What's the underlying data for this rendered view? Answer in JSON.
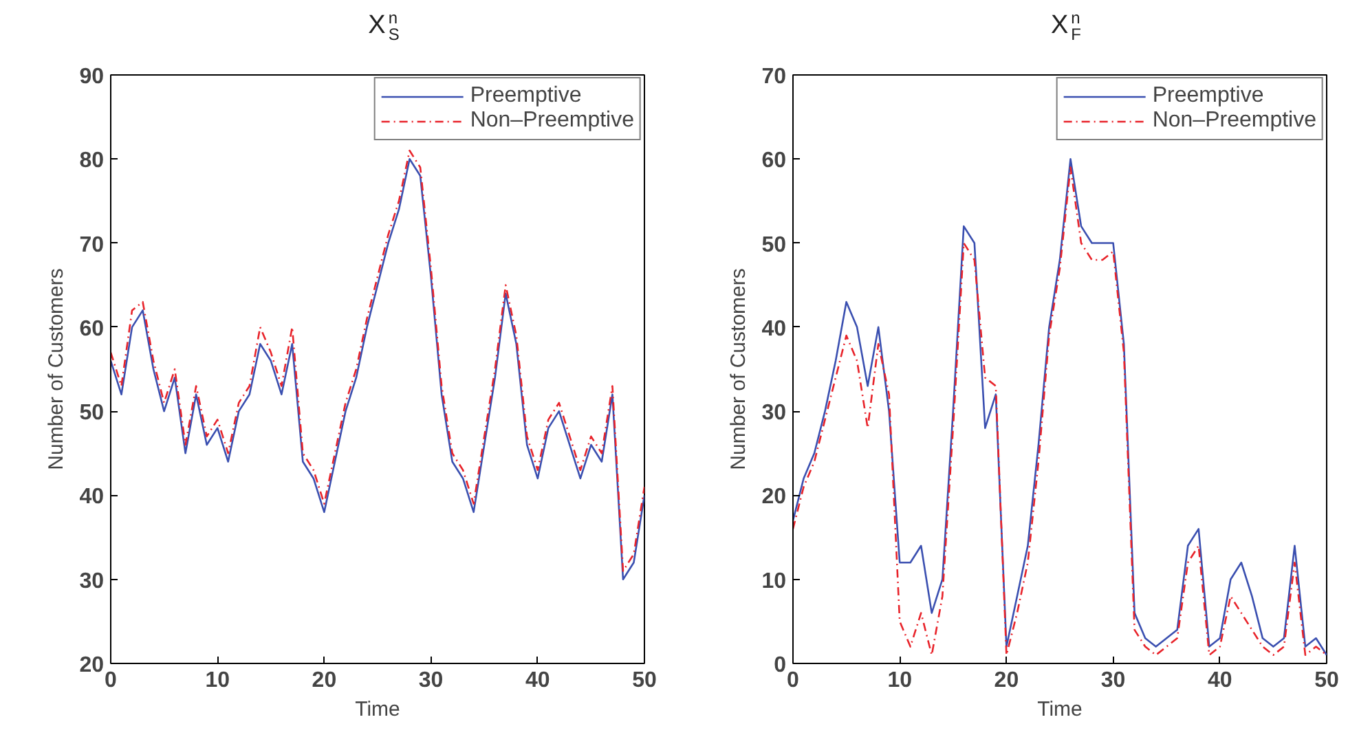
{
  "chart_data": [
    {
      "type": "line",
      "title": "X$^{n}$$_{S}$",
      "xlabel": "Time",
      "ylabel": "Number of Customers",
      "xlim": [
        0,
        50
      ],
      "ylim": [
        20,
        90
      ],
      "xticks": [
        0,
        10,
        20,
        30,
        40,
        50
      ],
      "yticks": [
        20,
        30,
        40,
        50,
        60,
        70,
        80,
        90
      ],
      "grid": false,
      "legend": "top right",
      "x": [
        0,
        1,
        2,
        3,
        4,
        5,
        6,
        7,
        8,
        9,
        10,
        11,
        12,
        13,
        14,
        15,
        16,
        17,
        18,
        19,
        20,
        21,
        22,
        23,
        24,
        25,
        26,
        27,
        28,
        29,
        30,
        31,
        32,
        33,
        34,
        35,
        36,
        37,
        38,
        39,
        40,
        41,
        42,
        43,
        44,
        45,
        46,
        47,
        48,
        49,
        50
      ],
      "series": [
        {
          "name": "Preemptive",
          "color": "#3a4fb0",
          "line_style": "solid",
          "values": [
            56,
            52,
            60,
            62,
            55,
            50,
            54,
            45,
            52,
            46,
            48,
            44,
            50,
            52,
            58,
            56,
            52,
            58,
            44,
            42,
            38,
            44,
            50,
            54,
            60,
            65,
            70,
            74,
            80,
            78,
            66,
            52,
            44,
            42,
            38,
            46,
            54,
            64,
            58,
            46,
            42,
            48,
            50,
            46,
            42,
            46,
            44,
            52,
            30,
            32,
            40
          ]
        },
        {
          "name": "Non–Preemptive",
          "color": "#e8232a",
          "line_style": "dashdot",
          "values": [
            57,
            53,
            62,
            63,
            56,
            51,
            55,
            46,
            53,
            47,
            49,
            45,
            51,
            53,
            60,
            57,
            53,
            60,
            45,
            43,
            39,
            45,
            51,
            55,
            61,
            66,
            71,
            75,
            81,
            79,
            67,
            53,
            45,
            43,
            39,
            47,
            55,
            65,
            59,
            47,
            43,
            49,
            51,
            47,
            43,
            47,
            45,
            53,
            31,
            33,
            41
          ]
        }
      ]
    },
    {
      "type": "line",
      "title": "X$^{n}$$_{F}$",
      "xlabel": "Time",
      "ylabel": "Number of Customers",
      "xlim": [
        0,
        50
      ],
      "ylim": [
        0,
        70
      ],
      "xticks": [
        0,
        10,
        20,
        30,
        40,
        50
      ],
      "yticks": [
        0,
        10,
        20,
        30,
        40,
        50,
        60,
        70
      ],
      "grid": false,
      "legend": "top right",
      "x": [
        0,
        1,
        2,
        3,
        4,
        5,
        6,
        7,
        8,
        9,
        10,
        11,
        12,
        13,
        14,
        15,
        16,
        17,
        18,
        19,
        20,
        21,
        22,
        23,
        24,
        25,
        26,
        27,
        28,
        29,
        30,
        31,
        32,
        33,
        34,
        35,
        36,
        37,
        38,
        39,
        40,
        41,
        42,
        43,
        44,
        45,
        46,
        47,
        48,
        49,
        50
      ],
      "series": [
        {
          "name": "Preemptive",
          "color": "#3a4fb0",
          "line_style": "solid",
          "values": [
            17,
            22,
            25,
            30,
            36,
            43,
            40,
            33,
            40,
            30,
            12,
            12,
            14,
            6,
            10,
            30,
            52,
            50,
            28,
            32,
            2,
            8,
            14,
            26,
            40,
            48,
            60,
            52,
            50,
            50,
            50,
            38,
            6,
            3,
            2,
            3,
            4,
            14,
            16,
            2,
            3,
            10,
            12,
            8,
            3,
            2,
            3,
            14,
            2,
            3,
            1
          ]
        },
        {
          "name": "Non–Preemptive",
          "color": "#e8232a",
          "line_style": "dashdot",
          "values": [
            16,
            21,
            24,
            29,
            34,
            39,
            36,
            28,
            38,
            32,
            5,
            2,
            6,
            1,
            8,
            28,
            50,
            48,
            34,
            33,
            1,
            6,
            12,
            24,
            39,
            47,
            59,
            50,
            48,
            48,
            49,
            37,
            4,
            2,
            1,
            2,
            3,
            12,
            14,
            1,
            2,
            8,
            6,
            4,
            2,
            1,
            2,
            12,
            1,
            2,
            1
          ]
        }
      ]
    }
  ]
}
